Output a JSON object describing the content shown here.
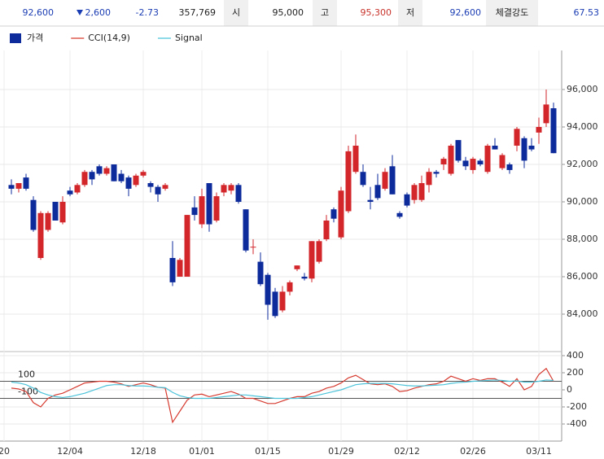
{
  "quote_bar": {
    "price": "92,600",
    "change": "2,600",
    "change_rate": "-2.73",
    "volume": "357,769",
    "open_label": "시",
    "open": "95,000",
    "high_label": "고",
    "high": "95,300",
    "low_label": "저",
    "low": "92,600",
    "strength_label": "체결강도",
    "strength": "67.53"
  },
  "chart_data": [
    {
      "type": "candlestick",
      "series": [
        {
          "name": "가격",
          "color": "#0d2b9b",
          "up_color": "#d3262b",
          "open": [
            null,
            90900,
            90700,
            91300,
            90100,
            87000,
            88500,
            90000,
            88900,
            90600,
            90500,
            90900,
            91600,
            91900,
            91500,
            92000,
            91500,
            91300,
            90900,
            91400,
            91000,
            90800,
            90700,
            87000,
            86000,
            86000,
            89700,
            88800,
            91000,
            89000,
            90500,
            90600,
            90900,
            89600,
            87600,
            86800,
            86100,
            85200,
            84200,
            85200,
            86400,
            86000,
            85900,
            86800,
            88000,
            89600,
            88100,
            89500,
            91600,
            91600,
            90100,
            90900,
            90700,
            91900,
            89400,
            90400,
            90100,
            90100,
            90900,
            91600,
            92000,
            91500,
            93300,
            92200,
            91700,
            92200,
            91600,
            93000,
            91800,
            92000,
            93000,
            93400,
            93000,
            93700,
            94200,
            95000
          ],
          "high": [
            null,
            91200,
            91000,
            91500,
            90300,
            89500,
            89500,
            90000,
            90300,
            90800,
            91000,
            91700,
            91700,
            92000,
            91900,
            92000,
            91700,
            91400,
            91500,
            91700,
            91100,
            90900,
            91000,
            87900,
            87000,
            89300,
            90300,
            90700,
            91000,
            90500,
            91000,
            91000,
            91000,
            89600,
            88000,
            87300,
            86200,
            85400,
            85500,
            85800,
            86600,
            86200,
            87900,
            88000,
            89300,
            89700,
            90800,
            93000,
            93600,
            92000,
            90800,
            91500,
            91800,
            92500,
            89500,
            90500,
            91000,
            91400,
            91800,
            91700,
            92400,
            93100,
            93300,
            92400,
            92400,
            92300,
            93100,
            93400,
            92600,
            92100,
            94000,
            93500,
            93400,
            94500,
            96000,
            95300
          ],
          "low": [
            null,
            90400,
            90500,
            90600,
            88400,
            86900,
            88400,
            89000,
            88800,
            90300,
            90400,
            90800,
            90900,
            91400,
            91400,
            91100,
            91000,
            90300,
            90800,
            91300,
            90500,
            90000,
            90600,
            85500,
            86000,
            86000,
            89000,
            88600,
            88400,
            88900,
            90300,
            90400,
            89900,
            87300,
            87200,
            85500,
            83700,
            83800,
            84100,
            85000,
            86300,
            85800,
            85700,
            86700,
            87900,
            88900,
            88000,
            89400,
            91500,
            90800,
            89600,
            90100,
            90600,
            90400,
            89100,
            89700,
            89900,
            90000,
            90500,
            91300,
            91700,
            91400,
            92100,
            91700,
            91500,
            91900,
            91500,
            92800,
            91700,
            91500,
            92700,
            91800,
            92700,
            93100,
            94000,
            92600
          ],
          "close": [
            null,
            90700,
            91000,
            90700,
            88500,
            89400,
            89400,
            89000,
            90000,
            90400,
            90900,
            91600,
            91200,
            91500,
            91800,
            91100,
            91100,
            90700,
            91400,
            91600,
            90800,
            90400,
            90900,
            85700,
            86900,
            89300,
            89300,
            90300,
            88800,
            90300,
            90900,
            90900,
            90000,
            87400,
            87600,
            85600,
            84500,
            83900,
            85200,
            85700,
            86600,
            85900,
            87900,
            87900,
            89000,
            89100,
            90600,
            92700,
            93000,
            90900,
            90000,
            90200,
            91600,
            90400,
            89200,
            89800,
            90900,
            91000,
            91600,
            91500,
            92300,
            93000,
            92200,
            91900,
            92300,
            92000,
            93000,
            92800,
            92500,
            91700,
            93900,
            92200,
            92800,
            94000,
            95200,
            92600
          ]
        }
      ],
      "ylim": [
        82000,
        98000
      ],
      "yticks": [
        {
          "value": 84000,
          "label": "84,000"
        },
        {
          "value": 86000,
          "label": "86,000"
        },
        {
          "value": 88000,
          "label": "88,000"
        },
        {
          "value": 90000,
          "label": "90,000"
        },
        {
          "value": 92000,
          "label": "92,000"
        },
        {
          "value": 94000,
          "label": "94,000"
        },
        {
          "value": 96000,
          "label": "96,000"
        }
      ],
      "grid": true
    },
    {
      "type": "line",
      "categories": [
        "20",
        null,
        null,
        null,
        null,
        null,
        null,
        null,
        null,
        "12/04",
        null,
        null,
        null,
        null,
        null,
        null,
        null,
        null,
        null,
        "12/18",
        null,
        null,
        null,
        null,
        null,
        null,
        null,
        "01/01",
        null,
        null,
        null,
        null,
        null,
        null,
        null,
        null,
        "01/15",
        null,
        null,
        null,
        null,
        null,
        null,
        null,
        null,
        null,
        "01/29",
        null,
        null,
        null,
        null,
        null,
        null,
        null,
        null,
        "02/12",
        null,
        null,
        null,
        null,
        null,
        null,
        null,
        null,
        "02/26",
        null,
        null,
        null,
        null,
        null,
        null,
        null,
        null,
        "03/11",
        null,
        null
      ],
      "series": [
        {
          "name": "CCI(14,9)",
          "color": "#d63a2f",
          "values": [
            null,
            20,
            10,
            -20,
            -150,
            -200,
            -100,
            -60,
            -40,
            0,
            40,
            80,
            90,
            100,
            100,
            90,
            70,
            40,
            60,
            80,
            60,
            30,
            20,
            -380,
            -250,
            -120,
            -60,
            -50,
            -80,
            -60,
            -40,
            -20,
            -50,
            -100,
            -100,
            -130,
            -160,
            -160,
            -130,
            -100,
            -80,
            -80,
            -40,
            -20,
            20,
            40,
            80,
            140,
            170,
            120,
            70,
            60,
            70,
            40,
            -20,
            -10,
            20,
            40,
            60,
            70,
            100,
            160,
            130,
            100,
            130,
            110,
            130,
            130,
            90,
            40,
            130,
            0,
            40,
            180,
            250,
            100
          ]
        },
        {
          "name": "Signal",
          "color": "#4cc3d9",
          "values": [
            null,
            90,
            80,
            60,
            20,
            -30,
            -60,
            -80,
            -90,
            -80,
            -60,
            -40,
            -10,
            20,
            50,
            60,
            60,
            50,
            45,
            45,
            40,
            30,
            25,
            -30,
            -70,
            -90,
            -100,
            -100,
            -100,
            -90,
            -80,
            -70,
            -60,
            -60,
            -70,
            -80,
            -90,
            -100,
            -100,
            -100,
            -100,
            -90,
            -80,
            -60,
            -40,
            -20,
            0,
            30,
            60,
            70,
            75,
            75,
            75,
            70,
            60,
            50,
            45,
            45,
            50,
            55,
            60,
            75,
            85,
            90,
            100,
            105,
            110,
            115,
            110,
            100,
            105,
            90,
            90,
            100,
            115,
            110
          ]
        }
      ],
      "ylim": [
        -600,
        400
      ],
      "yticks": [
        -400,
        -200,
        0,
        200,
        400
      ],
      "reference_lines": [
        100,
        -100
      ],
      "grid": true
    }
  ]
}
